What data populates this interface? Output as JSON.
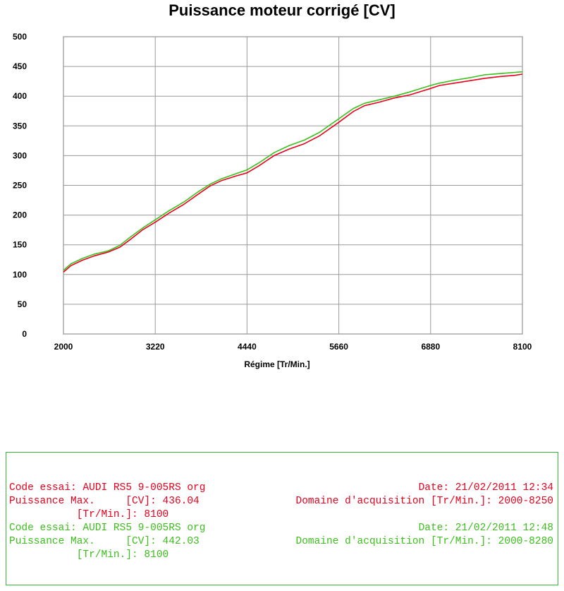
{
  "chart_data": {
    "type": "line",
    "title": "Puissance moteur corrigé [CV]",
    "xlabel": "Régime [Tr/Min.]",
    "ylabel": "",
    "xlim": [
      2000,
      8100
    ],
    "ylim": [
      0,
      500
    ],
    "x_ticks": [
      "2000",
      "3220",
      "4440",
      "5660",
      "6880",
      "8100"
    ],
    "y_ticks": [
      "0",
      "50",
      "100",
      "150",
      "200",
      "250",
      "300",
      "350",
      "400",
      "450",
      "500"
    ],
    "grid": true,
    "series": [
      {
        "color": "#e8001c",
        "points": [
          [
            2000,
            104
          ],
          [
            2100,
            115
          ],
          [
            2250,
            124
          ],
          [
            2400,
            131
          ],
          [
            2600,
            138
          ],
          [
            2750,
            146
          ],
          [
            2900,
            160
          ],
          [
            3050,
            175
          ],
          [
            3220,
            188
          ],
          [
            3400,
            203
          ],
          [
            3600,
            218
          ],
          [
            3800,
            236
          ],
          [
            3950,
            249
          ],
          [
            4100,
            258
          ],
          [
            4300,
            266
          ],
          [
            4440,
            271
          ],
          [
            4600,
            283
          ],
          [
            4800,
            300
          ],
          [
            5000,
            311
          ],
          [
            5200,
            320
          ],
          [
            5400,
            333
          ],
          [
            5660,
            356
          ],
          [
            5850,
            374
          ],
          [
            6000,
            384
          ],
          [
            6200,
            390
          ],
          [
            6400,
            397
          ],
          [
            6600,
            402
          ],
          [
            6880,
            413
          ],
          [
            7000,
            418
          ],
          [
            7200,
            422
          ],
          [
            7400,
            426
          ],
          [
            7600,
            430
          ],
          [
            7800,
            433
          ],
          [
            8000,
            435
          ],
          [
            8100,
            437
          ]
        ]
      },
      {
        "color": "#3cbf1c",
        "points": [
          [
            2000,
            107
          ],
          [
            2100,
            118
          ],
          [
            2250,
            127
          ],
          [
            2400,
            134
          ],
          [
            2600,
            140
          ],
          [
            2750,
            149
          ],
          [
            2900,
            164
          ],
          [
            3050,
            178
          ],
          [
            3220,
            192
          ],
          [
            3400,
            207
          ],
          [
            3600,
            222
          ],
          [
            3800,
            240
          ],
          [
            3950,
            252
          ],
          [
            4100,
            261
          ],
          [
            4300,
            270
          ],
          [
            4440,
            276
          ],
          [
            4600,
            288
          ],
          [
            4800,
            305
          ],
          [
            5000,
            317
          ],
          [
            5200,
            326
          ],
          [
            5400,
            339
          ],
          [
            5660,
            362
          ],
          [
            5850,
            379
          ],
          [
            6000,
            388
          ],
          [
            6200,
            394
          ],
          [
            6400,
            400
          ],
          [
            6600,
            407
          ],
          [
            6880,
            418
          ],
          [
            7000,
            422
          ],
          [
            7200,
            427
          ],
          [
            7400,
            431
          ],
          [
            7600,
            436
          ],
          [
            7800,
            438
          ],
          [
            8000,
            440
          ],
          [
            8100,
            441
          ]
        ]
      }
    ]
  },
  "colors": {
    "red": "#e8001c",
    "green": "#3cbf1c",
    "box_border": "#3bb33b",
    "grid": "#9a9a9a"
  },
  "info": {
    "rows": [
      {
        "left": "Code essai: AUDI RS5 9-005RS org",
        "right": "Date: 21/02/2011 12:34"
      },
      {
        "left": "Puissance Max.     [CV]: 436.04",
        "right": "Domaine d'acquisition [Tr/Min.]: 2000-8250"
      },
      {
        "left": "           [Tr/Min.]: 8100",
        "right": ""
      },
      {
        "left": "Code essai: AUDI RS5 9-005RS org",
        "right": "Date: 21/02/2011 12:48"
      },
      {
        "left": "Puissance Max.     [CV]: 442.03",
        "right": "Domaine d'acquisition [Tr/Min.]: 2000-8280"
      },
      {
        "left": "           [Tr/Min.]: 8100",
        "right": ""
      }
    ]
  }
}
